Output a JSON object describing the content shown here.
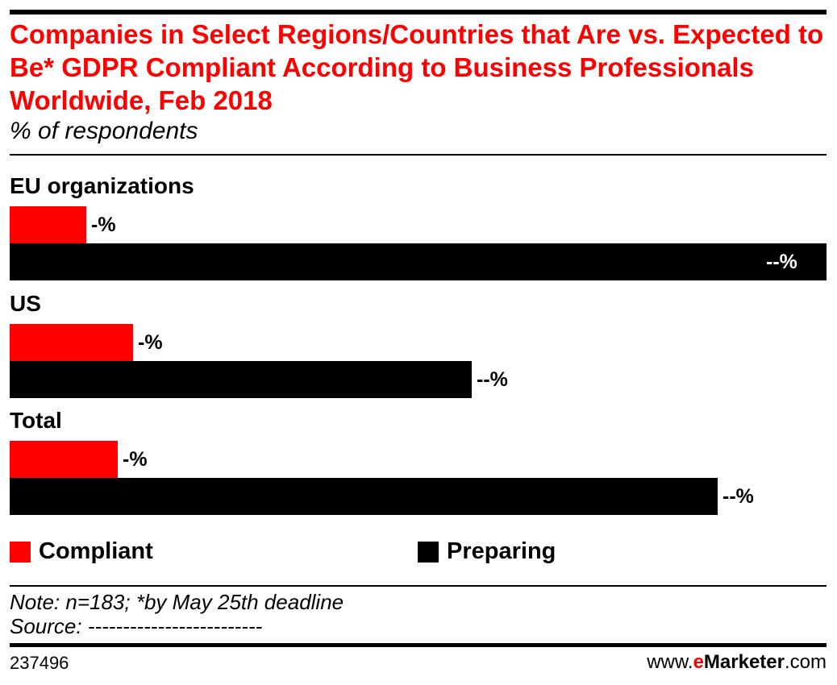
{
  "chart_data": {
    "type": "bar",
    "orientation": "horizontal",
    "title": "Companies in Select Regions/Countries that Are vs. Expected to Be* GDPR Compliant According to Business Professionals Worldwide, Feb 2018",
    "subtitle": "% of respondents",
    "categories": [
      "EU organizations",
      "US",
      "Total"
    ],
    "series": [
      {
        "name": "Compliant",
        "color": "#ff0000",
        "values": [
          8.2,
          13.1,
          11.5
        ],
        "labels": [
          "-%",
          "-%",
          "-%"
        ]
      },
      {
        "name": "Preparing",
        "color": "#000000",
        "values": [
          87,
          49.2,
          75.4
        ],
        "labels": [
          "--%",
          "--%",
          "--%"
        ]
      }
    ],
    "xlim": [
      0,
      87
    ],
    "grid": false,
    "legend_position": "bottom",
    "note": "Note: n=183; *by May 25th deadline",
    "source": "Source: -------------------------"
  },
  "footer": {
    "id": "237496",
    "brand_prefix": "www.",
    "brand_e": "e",
    "brand_name": "Marketer",
    "brand_suffix": ".com"
  },
  "colors": {
    "accent": "#ff0000",
    "dark": "#000000"
  }
}
